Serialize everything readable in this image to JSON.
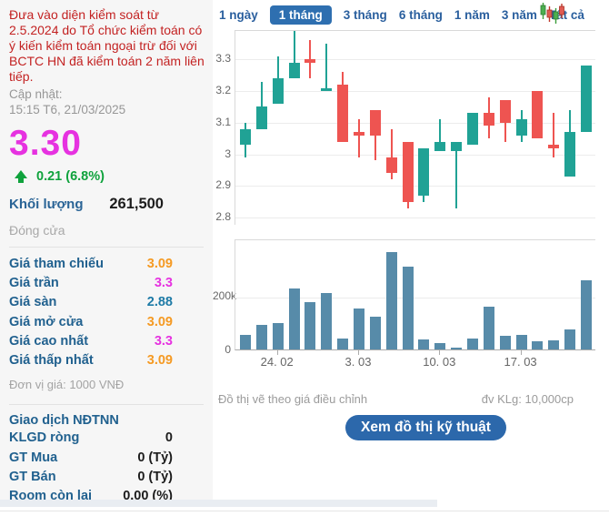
{
  "sidebar": {
    "warning": "Đưa vào diện kiểm soát từ 2.5.2024 do Tổ chức kiểm toán có ý kiến kiểm toán ngoại trừ đối với BCTC HN đã kiểm toán 2 năm liên tiếp.",
    "updated_label": "Cập nhật:",
    "updated_time": "15:15 T6, 21/03/2025",
    "price": "3.30",
    "change": "0.21 (6.8%)",
    "volume_label": "Khối lượng",
    "volume_value": "261,500",
    "session_status": "Đóng cửa",
    "price_rows": [
      {
        "label": "Giá tham chiếu",
        "value": "3.09",
        "color": "#f59a23"
      },
      {
        "label": "Giá trần",
        "value": "3.3",
        "color": "#e632e0"
      },
      {
        "label": "Giá sàn",
        "value": "2.88",
        "color": "#1d7aa6"
      },
      {
        "label": "Giá mở cửa",
        "value": "3.09",
        "color": "#f59a23"
      },
      {
        "label": "Giá cao nhất",
        "value": "3.3",
        "color": "#e632e0"
      },
      {
        "label": "Giá thấp nhất",
        "value": "3.09",
        "color": "#f59a23"
      }
    ],
    "price_unit_note": "Đơn vị giá: 1000 VNĐ",
    "foreign_title": "Giao dịch NĐTNN",
    "foreign_rows": [
      {
        "label": "KLGD ròng",
        "value": "0"
      },
      {
        "label": "GT Mua",
        "value": "0 (Tỷ)"
      },
      {
        "label": "GT Bán",
        "value": "0 (Tỷ)"
      },
      {
        "label": "Room còn lại",
        "value": "0.00 (%)"
      }
    ]
  },
  "tabs": {
    "items": [
      "1 ngày",
      "1 tháng",
      "3 tháng",
      "6 tháng",
      "1 năm",
      "3 năm",
      "Tất cả"
    ],
    "active": "1 tháng"
  },
  "chart_data": {
    "type": "candlestick+volume",
    "price": {
      "type": "candlestick",
      "up_color": "#20a295",
      "down_color": "#ee5451",
      "y_range": [
        2.774,
        3.39
      ],
      "yticks": [
        {
          "label": "3.3",
          "value": 3.3
        },
        {
          "label": "3.2",
          "value": 3.2
        },
        {
          "label": "3.1",
          "value": 3.1
        },
        {
          "label": "3",
          "value": 3.0
        },
        {
          "label": "2.9",
          "value": 2.9
        },
        {
          "label": "2.8",
          "value": 2.8
        }
      ],
      "candles": [
        {
          "o": 3.03,
          "h": 3.1,
          "l": 2.99,
          "c": 3.08
        },
        {
          "o": 3.08,
          "h": 3.23,
          "l": 3.08,
          "c": 3.15
        },
        {
          "o": 3.16,
          "h": 3.31,
          "l": 3.16,
          "c": 3.24
        },
        {
          "o": 3.24,
          "h": 3.39,
          "l": 3.24,
          "c": 3.29
        },
        {
          "o": 3.3,
          "h": 3.36,
          "l": 3.24,
          "c": 3.29
        },
        {
          "o": 3.2,
          "h": 3.35,
          "l": 3.2,
          "c": 3.21
        },
        {
          "o": 3.22,
          "h": 3.26,
          "l": 3.04,
          "c": 3.04
        },
        {
          "o": 3.07,
          "h": 3.11,
          "l": 2.99,
          "c": 3.06
        },
        {
          "o": 3.14,
          "h": 3.14,
          "l": 2.98,
          "c": 3.06
        },
        {
          "o": 2.99,
          "h": 3.08,
          "l": 2.92,
          "c": 2.94
        },
        {
          "o": 3.04,
          "h": 3.04,
          "l": 2.83,
          "c": 2.85
        },
        {
          "o": 2.87,
          "h": 3.02,
          "l": 2.85,
          "c": 3.02
        },
        {
          "o": 3.01,
          "h": 3.11,
          "l": 3.01,
          "c": 3.04
        },
        {
          "o": 3.01,
          "h": 3.04,
          "l": 2.83,
          "c": 3.04
        },
        {
          "o": 3.03,
          "h": 3.13,
          "l": 3.03,
          "c": 3.13
        },
        {
          "o": 3.13,
          "h": 3.18,
          "l": 3.05,
          "c": 3.09
        },
        {
          "o": 3.17,
          "h": 3.17,
          "l": 3.04,
          "c": 3.1
        },
        {
          "o": 3.06,
          "h": 3.14,
          "l": 3.04,
          "c": 3.11
        },
        {
          "o": 3.2,
          "h": 3.2,
          "l": 3.05,
          "c": 3.05
        },
        {
          "o": 3.03,
          "h": 3.13,
          "l": 2.99,
          "c": 3.02
        },
        {
          "o": 2.93,
          "h": 3.14,
          "l": 2.93,
          "c": 3.07
        },
        {
          "o": 3.07,
          "h": 3.28,
          "l": 3.07,
          "c": 3.28
        }
      ]
    },
    "volume": {
      "type": "bar",
      "bar_color": "#578ba9",
      "ylim_thousands": [
        0,
        413
      ],
      "yticks": [
        {
          "label": "200k",
          "value": 200
        },
        {
          "label": "0",
          "value": 0
        }
      ],
      "values_thousands": [
        53,
        91,
        100,
        226,
        176,
        209,
        42,
        151,
        121,
        363,
        308,
        39,
        24,
        6,
        41,
        160,
        52,
        56,
        30,
        33,
        74,
        258
      ],
      "x_labels": [
        {
          "label": "24. 02",
          "index": 2
        },
        {
          "label": "3. 03",
          "index": 7
        },
        {
          "label": "10. 03",
          "index": 12
        },
        {
          "label": "17. 03",
          "index": 17
        }
      ]
    }
  },
  "footer": {
    "note_left": "Đồ thị vẽ theo giá điều chỉnh",
    "note_right": "đv KLg: 10,000cp",
    "button_label": "Xem đồ thị kỹ thuật"
  },
  "colors": {
    "accent_blue": "#2e6fb0",
    "label_blue": "#21618f",
    "ceiling_magenta": "#e632e0",
    "floor_blue": "#1d7aa6",
    "reference_orange": "#f59a23",
    "up_green": "#0fa23c",
    "warning_red": "#c32222"
  }
}
